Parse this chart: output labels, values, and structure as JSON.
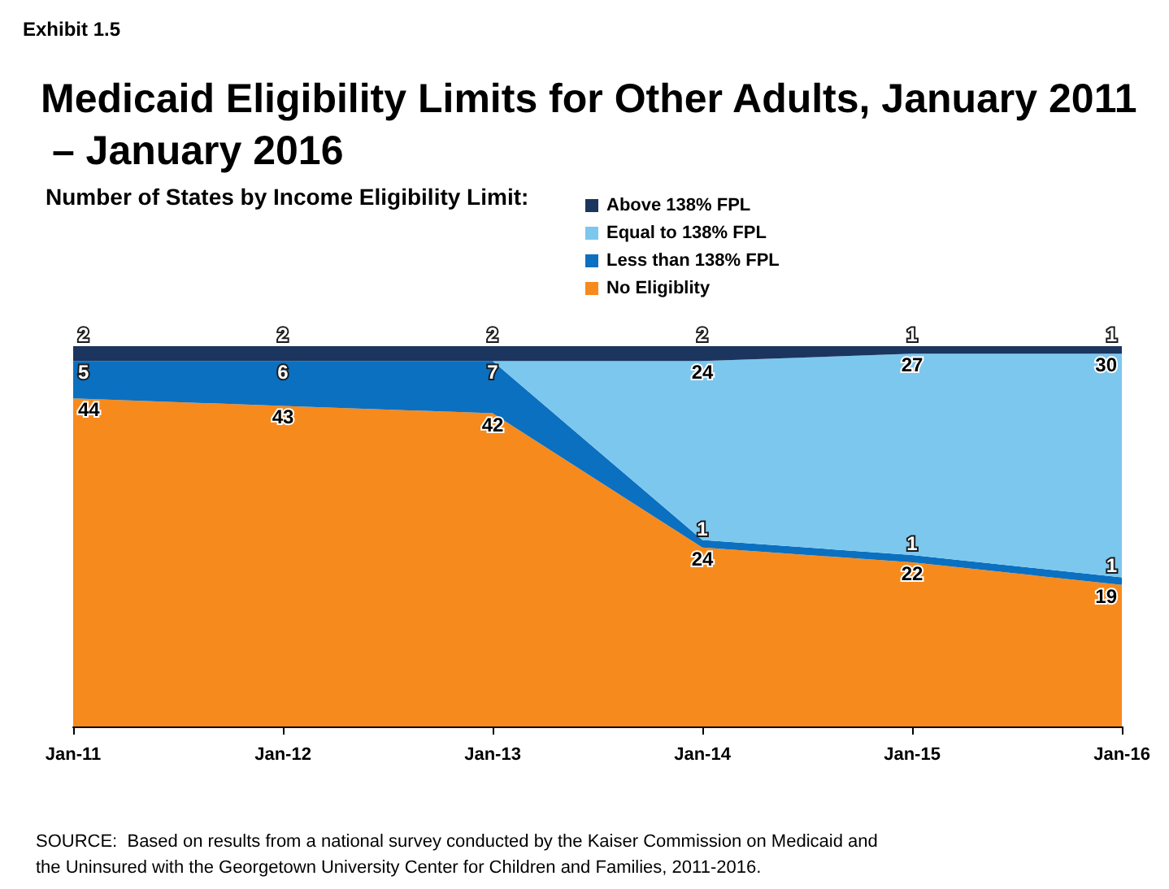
{
  "chart_data": {
    "type": "area",
    "stacked": true,
    "title": "Medicaid Eligibility Limits for Other Adults, January 2011 – January 2016",
    "subtitle": "Number of States by Income Eligibility Limit:",
    "categories": [
      "Jan-11",
      "Jan-12",
      "Jan-13",
      "Jan-14",
      "Jan-15",
      "Jan-16"
    ],
    "series": [
      {
        "name": "No Eligiblity",
        "color": "#f78a1d",
        "values": [
          44,
          43,
          42,
          24,
          22,
          19
        ],
        "value_labels": [
          "44",
          "43",
          "42",
          "24",
          "22",
          "19"
        ]
      },
      {
        "name": "Less than 138% FPL",
        "color": "#0b70c0",
        "values": [
          5,
          6,
          7,
          1,
          1,
          1
        ],
        "value_labels": [
          "5",
          "6",
          "7",
          "1",
          "1",
          "1"
        ]
      },
      {
        "name": "Equal to 138% FPL",
        "color": "#7cc7ee",
        "values": [
          0,
          0,
          0,
          24,
          27,
          30
        ],
        "value_labels": [
          null,
          null,
          null,
          "24",
          "27",
          "30"
        ]
      },
      {
        "name": "Above 138% FPL",
        "color": "#1b355f",
        "values": [
          2,
          2,
          2,
          2,
          1,
          1
        ],
        "value_labels": [
          "2",
          "2",
          "2",
          "2",
          "1",
          "1"
        ]
      }
    ],
    "legend": "top",
    "grid": false,
    "marker": "none",
    "annotations": [
      "Exhibit 1.5",
      "SOURCE:  Based on results from a national survey conducted by the Kaiser Commission on Medicaid and the Uninsured with the Georgetown University Center for Children and Families, 2011-2016."
    ]
  }
}
